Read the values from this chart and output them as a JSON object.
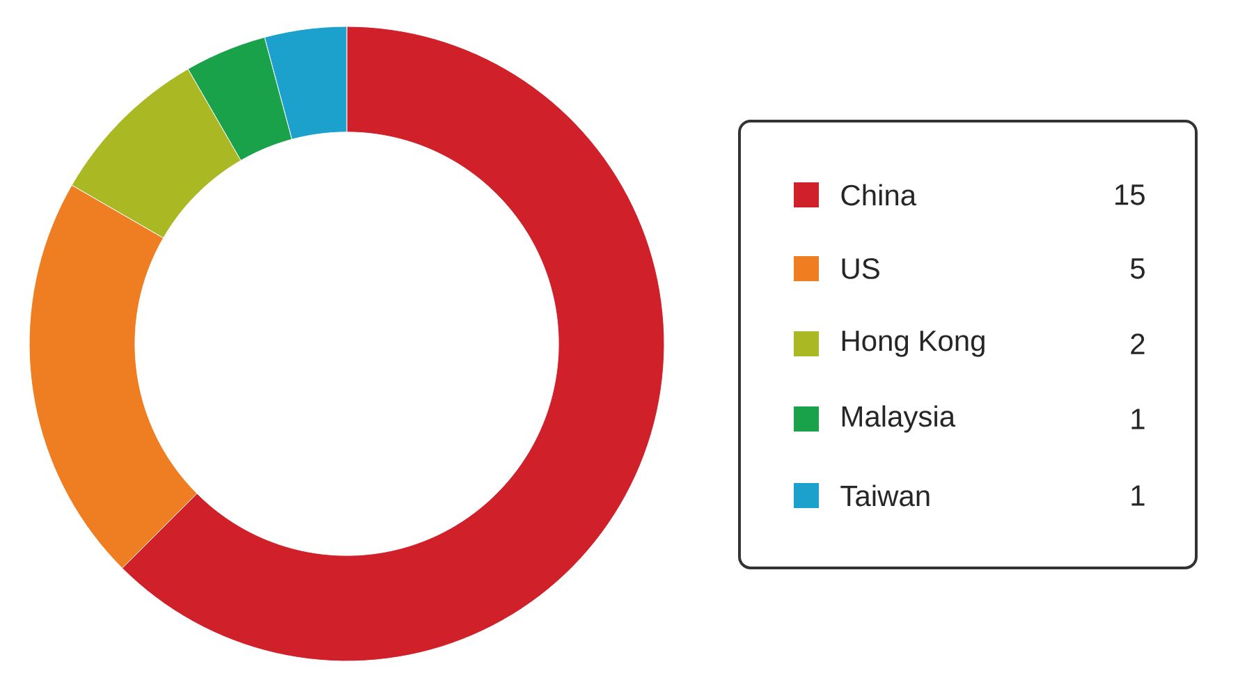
{
  "chart_data": {
    "type": "donut",
    "categories": [
      "China",
      "US",
      "Hong Kong",
      "Malaysia",
      "Taiwan"
    ],
    "values": [
      15,
      5,
      2,
      1,
      1
    ],
    "colors": [
      "#d0202a",
      "#ef7d22",
      "#a9b823",
      "#1aa24a",
      "#1ba1cc"
    ],
    "data_labels": true,
    "legend": "right"
  }
}
